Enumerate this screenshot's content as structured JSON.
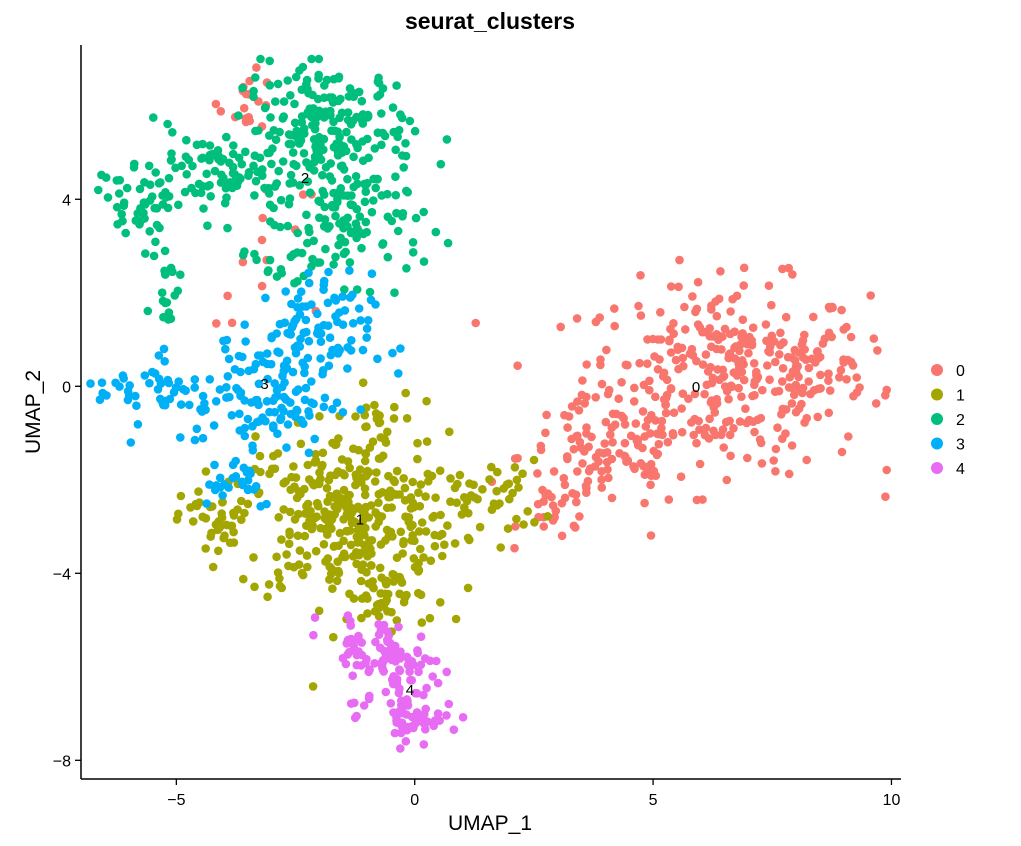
{
  "chart_data": {
    "type": "scatter",
    "title": "seurat_clusters",
    "xlabel": "UMAP_1",
    "ylabel": "UMAP_2",
    "xlim": [
      -7.0,
      10.2
    ],
    "ylim": [
      -8.4,
      7.3
    ],
    "x_ticks": [
      -5,
      0,
      5,
      10
    ],
    "y_ticks": [
      -8,
      -4,
      0,
      4
    ],
    "grid": false,
    "legend_position": "right",
    "legend": [
      {
        "label": "0",
        "color": "#F8766D"
      },
      {
        "label": "1",
        "color": "#A3A500"
      },
      {
        "label": "2",
        "color": "#00BF7D"
      },
      {
        "label": "3",
        "color": "#00B0F6"
      },
      {
        "label": "4",
        "color": "#E76BF3"
      }
    ],
    "cluster_labels": [
      {
        "text": "0",
        "x": 5.9,
        "y": -0.02
      },
      {
        "text": "1",
        "x": -1.15,
        "y": -2.85
      },
      {
        "text": "2",
        "x": -2.3,
        "y": 4.45
      },
      {
        "text": "3",
        "x": -3.15,
        "y": 0.05
      },
      {
        "text": "4",
        "x": -0.1,
        "y": -6.5
      }
    ],
    "series": [
      {
        "name": "0",
        "color": "#F8766D",
        "clusters": [
          {
            "cx": 6.5,
            "cy": 0.2,
            "sx": 1.5,
            "sy": 1.0,
            "n": 330
          },
          {
            "cx": 4.0,
            "cy": -1.5,
            "sx": 0.9,
            "sy": 0.6,
            "n": 90
          },
          {
            "cx": 3.0,
            "cy": -2.7,
            "sx": 0.4,
            "sy": 0.3,
            "n": 25
          },
          {
            "cx": 8.5,
            "cy": 0.5,
            "sx": 0.5,
            "sy": 0.4,
            "n": 30
          },
          {
            "cx": -3.5,
            "cy": 6.1,
            "sx": 0.3,
            "sy": 0.3,
            "n": 18
          },
          {
            "cx": -2.5,
            "cy": 3.0,
            "sx": 1.0,
            "sy": 0.8,
            "n": 14
          }
        ]
      },
      {
        "name": "1",
        "color": "#A3A500",
        "clusters": [
          {
            "cx": -1.5,
            "cy": -2.8,
            "sx": 1.1,
            "sy": 0.9,
            "n": 330
          },
          {
            "cx": -4.2,
            "cy": -2.9,
            "sx": 0.35,
            "sy": 0.4,
            "n": 35
          },
          {
            "cx": -0.5,
            "cy": -4.6,
            "sx": 0.6,
            "sy": 0.4,
            "n": 40
          },
          {
            "cx": 1.5,
            "cy": -2.4,
            "sx": 0.6,
            "sy": 0.4,
            "n": 45
          },
          {
            "cx": -0.8,
            "cy": -0.8,
            "sx": 0.4,
            "sy": 0.4,
            "n": 25
          }
        ]
      },
      {
        "name": "2",
        "color": "#00BF7D",
        "clusters": [
          {
            "cx": -1.8,
            "cy": 5.5,
            "sx": 0.9,
            "sy": 0.7,
            "n": 200
          },
          {
            "cx": -1.2,
            "cy": 3.5,
            "sx": 0.7,
            "sy": 0.6,
            "n": 90
          },
          {
            "cx": -4.0,
            "cy": 4.5,
            "sx": 1.0,
            "sy": 0.5,
            "n": 110
          },
          {
            "cx": -5.7,
            "cy": 3.9,
            "sx": 0.4,
            "sy": 0.3,
            "n": 35
          },
          {
            "cx": -5.2,
            "cy": 2.2,
            "sx": 0.15,
            "sy": 0.5,
            "n": 20
          },
          {
            "cx": -2.6,
            "cy": 2.8,
            "sx": 0.6,
            "sy": 0.4,
            "n": 25
          }
        ]
      },
      {
        "name": "3",
        "color": "#00B0F6",
        "clusters": [
          {
            "cx": -2.3,
            "cy": 1.0,
            "sx": 0.7,
            "sy": 0.7,
            "n": 110
          },
          {
            "cx": -3.3,
            "cy": -0.3,
            "sx": 0.8,
            "sy": 0.6,
            "n": 100
          },
          {
            "cx": -5.5,
            "cy": -0.1,
            "sx": 0.6,
            "sy": 0.3,
            "n": 40
          },
          {
            "cx": -3.8,
            "cy": -2.0,
            "sx": 0.5,
            "sy": 0.3,
            "n": 25
          }
        ]
      },
      {
        "name": "4",
        "color": "#E76BF3",
        "clusters": [
          {
            "cx": -0.4,
            "cy": -6.0,
            "sx": 0.5,
            "sy": 0.5,
            "n": 90
          },
          {
            "cx": 0.0,
            "cy": -7.1,
            "sx": 0.3,
            "sy": 0.3,
            "n": 45
          },
          {
            "cx": -1.2,
            "cy": -5.4,
            "sx": 0.4,
            "sy": 0.2,
            "n": 20
          }
        ]
      }
    ]
  }
}
